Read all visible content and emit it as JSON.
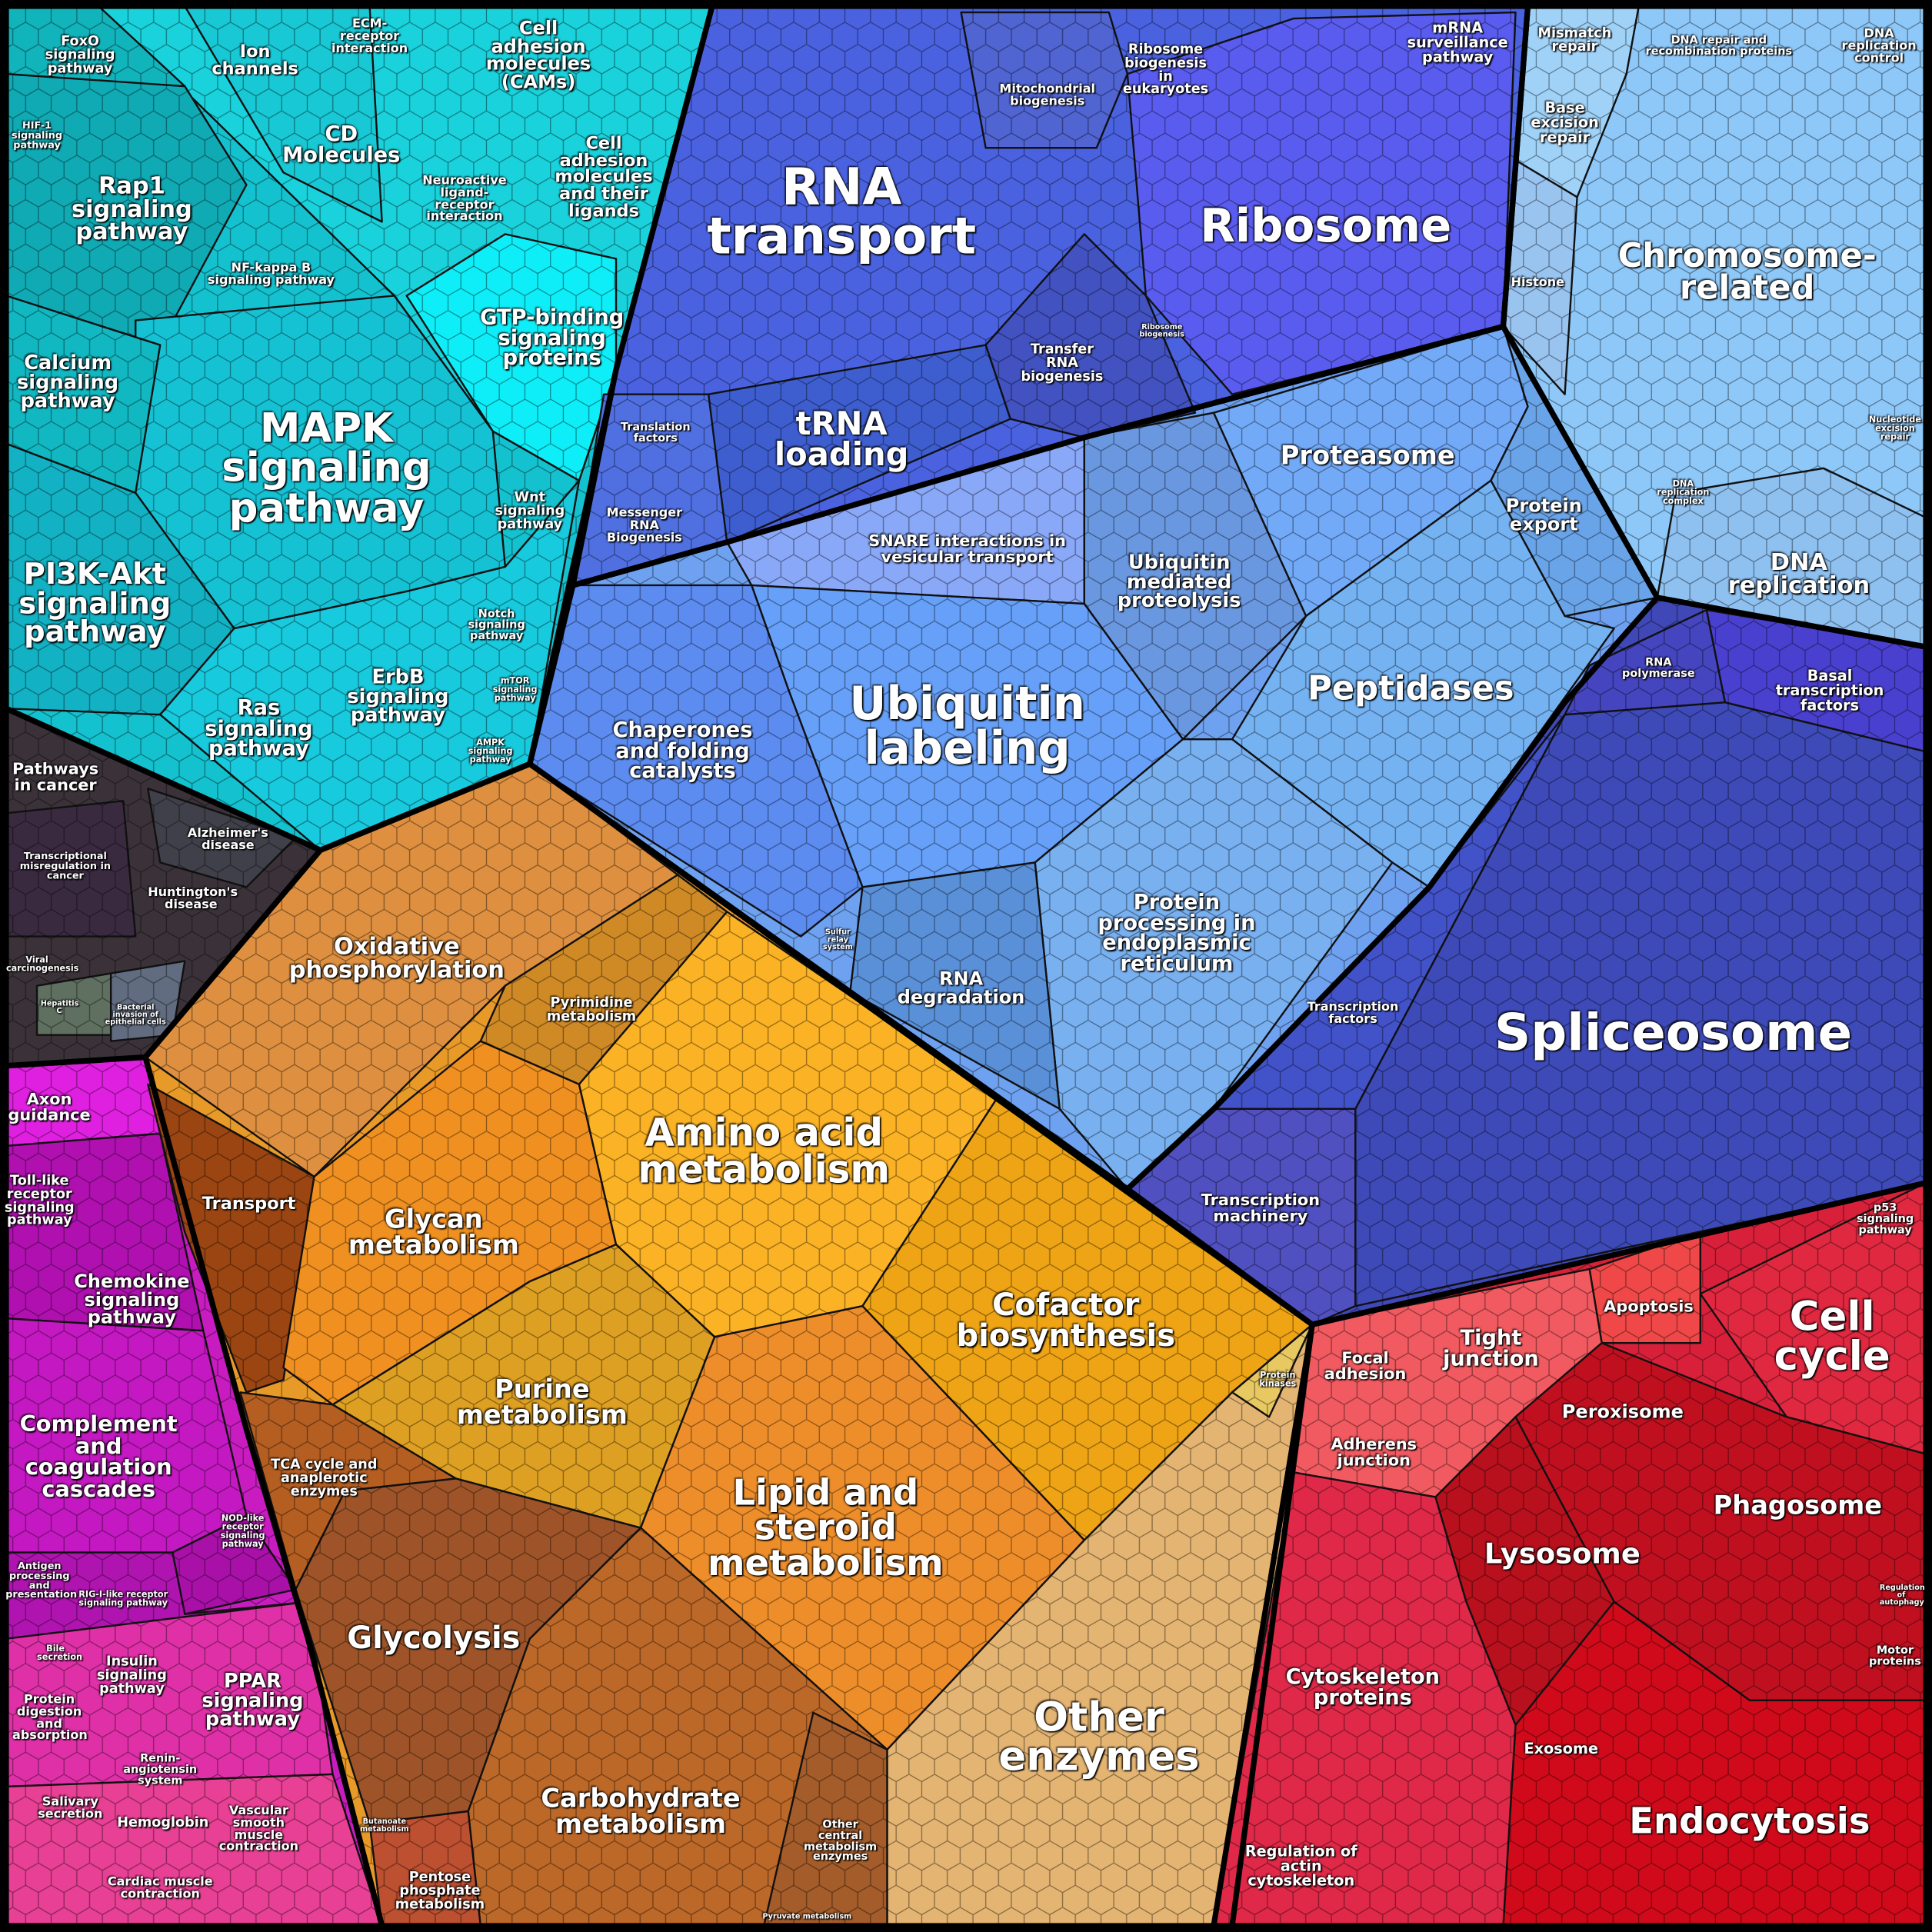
{
  "labels": [
    "FoxO signaling pathway",
    "Ion channels",
    "ECM-receptor interaction",
    "Cell adhesion molecules (CAMs)",
    "CD Molecules",
    "Cell adhesion molecules and their ligands",
    "HIF-1 signaling pathway",
    "Rap1 signaling pathway",
    "NF-kappa B signaling pathway",
    "Neuroactive ligand-receptor interaction",
    "GTP-binding signaling proteins",
    "Calcium signaling pathway",
    "MAPK signaling pathway",
    "Wnt signaling pathway",
    "PI3K-Akt signaling pathway",
    "Notch signaling pathway",
    "ErbB signaling pathway",
    "mTOR signaling pathway",
    "Ras signaling pathway",
    "AMPK signaling pathway",
    "Pathways in cancer",
    "Alzheimer's disease",
    "Transcriptional misregulation in cancer",
    "Huntington's disease",
    "Viral carcinogenesis",
    "Hepatitis C",
    "Bacterial invasion of epithelial cells",
    "Axon guidance",
    "Toll-like receptor signaling pathway",
    "Chemokine signaling pathway",
    "Complement and coagulation cascades",
    "NOD-like receptor signaling pathway",
    "Antigen processing and presentation",
    "RIG-I-like receptor signaling pathway",
    "Bile secretion",
    "Insulin signaling pathway",
    "PPAR signaling pathway",
    "Protein digestion and absorption",
    "Renin-angiotensin system",
    "Salivary secretion",
    "Hemoglobin",
    "Vascular smooth muscle contraction",
    "Cardiac muscle contraction",
    "Oxidative phosphorylation",
    "Pyrimidine metabolism",
    "Amino acid metabolism",
    "Transport",
    "Glycan metabolism",
    "Cofactor biosynthesis",
    "Purine metabolism",
    "Protein kinases",
    "TCA cycle and anaplerotic enzymes",
    "Lipid and steroid metabolism",
    "Glycolysis",
    "Other enzymes",
    "Carbohydrate metabolism",
    "Other central metabolism enzymes",
    "Butanoate metabolism",
    "Pentose phosphate metabolism",
    "Pyruvate metabolism",
    "Mitochondrial biogenesis",
    "Ribosome biogenesis in eukaryotes",
    "mRNA surveillance pathway",
    "RNA transport",
    "Ribosome",
    "Transfer RNA biogenesis",
    "Ribosome biogenesis",
    "tRNA loading",
    "Translation factors",
    "Messenger RNA Biogenesis",
    "Proteasome",
    "SNARE interactions in vesicular transport",
    "Ubiquitin mediated proteolysis",
    "Protein export",
    "Peptidases",
    "Ubiquitin labeling",
    "Chaperones and folding catalysts",
    "Protein processing in endoplasmic reticulum",
    "Sulfur relay system",
    "RNA degradation",
    "Mismatch repair",
    "DNA repair and recombination proteins",
    "DNA replication control",
    "Base excision repair",
    "Histone",
    "Chromosome-related",
    "Nucleotide excision repair",
    "DNA replication complex",
    "DNA replication",
    "RNA polymerase",
    "Basal transcription factors",
    "Spliceosome",
    "Transcription factors",
    "Transcription machinery",
    "p53 signaling pathway",
    "Apoptosis",
    "Tight junction",
    "Focal adhesion",
    "Cell cycle",
    "Peroxisome",
    "Adherens junction",
    "Phagosome",
    "Lysosome",
    "Regulation of autophagy",
    "Cytoskeleton proteins",
    "Motor proteins",
    "Exosome",
    "Endocytosis",
    "Regulation of actin cytoskeleton"
  ]
}
